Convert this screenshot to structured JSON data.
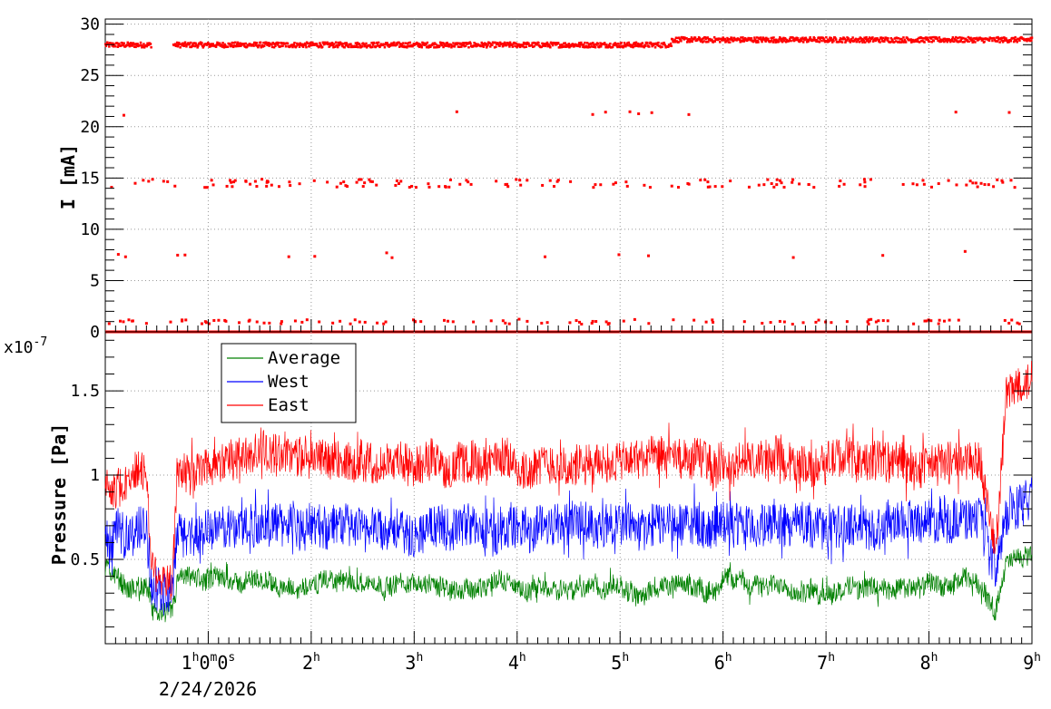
{
  "chart_data": [
    {
      "type": "scatter",
      "ylabel": "I [mA]",
      "xlim_hours": [
        0,
        9
      ],
      "ylim": [
        0,
        30.5
      ],
      "y_ticks": [
        "0",
        "5",
        "10",
        "15",
        "20",
        "25",
        "30"
      ],
      "grid": true,
      "series": [
        {
          "color": "#ff0000",
          "bands": [
            {
              "level": 28.0,
              "spans": [
                [
                  0,
                  0.45
                ],
                [
                  0.66,
                  5.5
                ]
              ],
              "spread": 0.25
            },
            {
              "level": 28.5,
              "spans": [
                [
                  5.5,
                  9.0
                ]
              ],
              "spread": 0.25
            },
            {
              "level": 0.0,
              "spans": [
                [
                  0,
                  9.0
                ]
              ],
              "spread": 0.0
            }
          ],
          "scattered_levels": [
            {
              "level": 14.5,
              "count": 150,
              "spread": 0.4
            },
            {
              "level": 7.5,
              "count": 14,
              "spread": 0.4
            },
            {
              "level": 21.3,
              "count": 10,
              "spread": 0.2
            },
            {
              "level": 1.0,
              "count": 110,
              "spread": 0.25
            }
          ]
        }
      ]
    },
    {
      "type": "line",
      "ylabel": "Pressure [Pa]",
      "y_multiplier": "x10",
      "y_multiplier_exp": "-7",
      "xlim_hours": [
        0,
        9
      ],
      "ylim": [
        0.0,
        1.85
      ],
      "y_ticks": [
        "0.5",
        "1",
        "1.5"
      ],
      "legend_position": "top-left",
      "grid": true,
      "series": [
        {
          "name": "Average",
          "color": "#008000",
          "profile": [
            [
              0,
              0.45
            ],
            [
              0.2,
              0.35
            ],
            [
              0.4,
              0.32
            ],
            [
              0.45,
              0.2
            ],
            [
              0.65,
              0.15
            ],
            [
              0.7,
              0.35
            ],
            [
              1.5,
              0.36
            ],
            [
              3.0,
              0.35
            ],
            [
              5.0,
              0.34
            ],
            [
              7.0,
              0.35
            ],
            [
              8.5,
              0.36
            ],
            [
              8.65,
              0.2
            ],
            [
              8.75,
              0.45
            ],
            [
              9.0,
              0.52
            ]
          ]
        },
        {
          "name": "West",
          "color": "#0000ff",
          "profile": [
            [
              0,
              0.6
            ],
            [
              0.1,
              0.65
            ],
            [
              0.4,
              0.7
            ],
            [
              0.45,
              0.34
            ],
            [
              0.65,
              0.3
            ],
            [
              0.7,
              0.68
            ],
            [
              1.5,
              0.72
            ],
            [
              3.0,
              0.7
            ],
            [
              5.0,
              0.7
            ],
            [
              7.0,
              0.7
            ],
            [
              8.5,
              0.72
            ],
            [
              8.65,
              0.4
            ],
            [
              8.75,
              0.8
            ],
            [
              9.0,
              0.9
            ]
          ]
        },
        {
          "name": "East",
          "color": "#ff0000",
          "profile": [
            [
              0,
              1.0
            ],
            [
              0.1,
              0.95
            ],
            [
              0.4,
              1.05
            ],
            [
              0.45,
              0.45
            ],
            [
              0.65,
              0.38
            ],
            [
              0.7,
              1.0
            ],
            [
              1.0,
              1.05
            ],
            [
              1.5,
              1.12
            ],
            [
              3.0,
              1.08
            ],
            [
              5.0,
              1.07
            ],
            [
              7.0,
              1.08
            ],
            [
              8.5,
              1.08
            ],
            [
              8.65,
              0.55
            ],
            [
              8.75,
              1.45
            ],
            [
              9.0,
              1.55
            ]
          ]
        }
      ]
    }
  ],
  "x_axis": {
    "tick_labels": [
      {
        "hour": 1,
        "main": "1",
        "parts": [
          [
            "h",
            "0"
          ],
          [
            "m",
            "0"
          ],
          [
            "s",
            ""
          ]
        ]
      },
      {
        "hour": 2,
        "main": "2",
        "parts": [
          [
            "h",
            ""
          ]
        ]
      },
      {
        "hour": 3,
        "main": "3",
        "parts": [
          [
            "h",
            ""
          ]
        ]
      },
      {
        "hour": 4,
        "main": "4",
        "parts": [
          [
            "h",
            ""
          ]
        ]
      },
      {
        "hour": 5,
        "main": "5",
        "parts": [
          [
            "h",
            ""
          ]
        ]
      },
      {
        "hour": 6,
        "main": "6",
        "parts": [
          [
            "h",
            ""
          ]
        ]
      },
      {
        "hour": 7,
        "main": "7",
        "parts": [
          [
            "h",
            ""
          ]
        ]
      },
      {
        "hour": 8,
        "main": "8",
        "parts": [
          [
            "h",
            ""
          ]
        ]
      },
      {
        "hour": 9,
        "main": "9",
        "parts": [
          [
            "h",
            ""
          ]
        ]
      }
    ],
    "date_label": "2/24/2026"
  }
}
